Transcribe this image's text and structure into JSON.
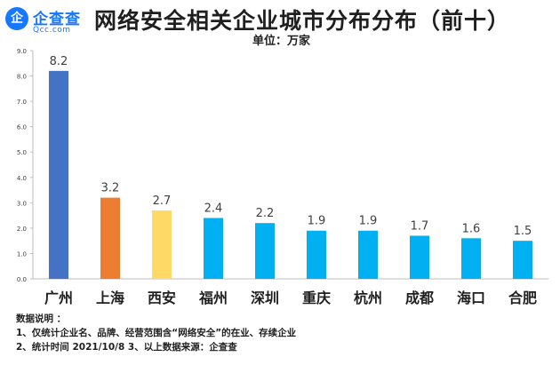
{
  "logo": {
    "mark": "企",
    "name": "企查查",
    "domain": "Qcc.com"
  },
  "chart_data": {
    "type": "bar",
    "title": "网络安全相关企业城市分布分布（前十）",
    "unit": "单位：万家",
    "categories": [
      "广州",
      "上海",
      "西安",
      "福州",
      "深圳",
      "重庆",
      "杭州",
      "成都",
      "海口",
      "合肥"
    ],
    "values": [
      8.2,
      3.2,
      2.7,
      2.4,
      2.2,
      1.9,
      1.9,
      1.7,
      1.6,
      1.5
    ],
    "value_labels": [
      "8.2",
      "3.2",
      "2.7",
      "2.4",
      "2.2",
      "1.9",
      "1.9",
      "1.7",
      "1.6",
      "1.5"
    ],
    "y_ticks": [
      "0.0",
      "1.0",
      "2.0",
      "3.0",
      "4.0",
      "5.0",
      "6.0",
      "7.0",
      "8.0",
      "9.0"
    ],
    "ylim": [
      0,
      9
    ],
    "colors": [
      "#4472c4",
      "#ed7d31",
      "#ffd966",
      "#00b0f0",
      "#00b0f0",
      "#00b0f0",
      "#00b0f0",
      "#00b0f0",
      "#00b0f0",
      "#00b0f0"
    ],
    "axis_color": "#bfbfbf",
    "label_color": "#404040",
    "xlabel": "",
    "ylabel": ""
  },
  "notes": {
    "heading": "数据说明 ：",
    "line1": "1、仅统计企业名、品牌、经营范围含“网络安全”的在业、存续企业",
    "line2": "2、统计时间 2021/10/8      3、以上数据来源：企查查"
  }
}
